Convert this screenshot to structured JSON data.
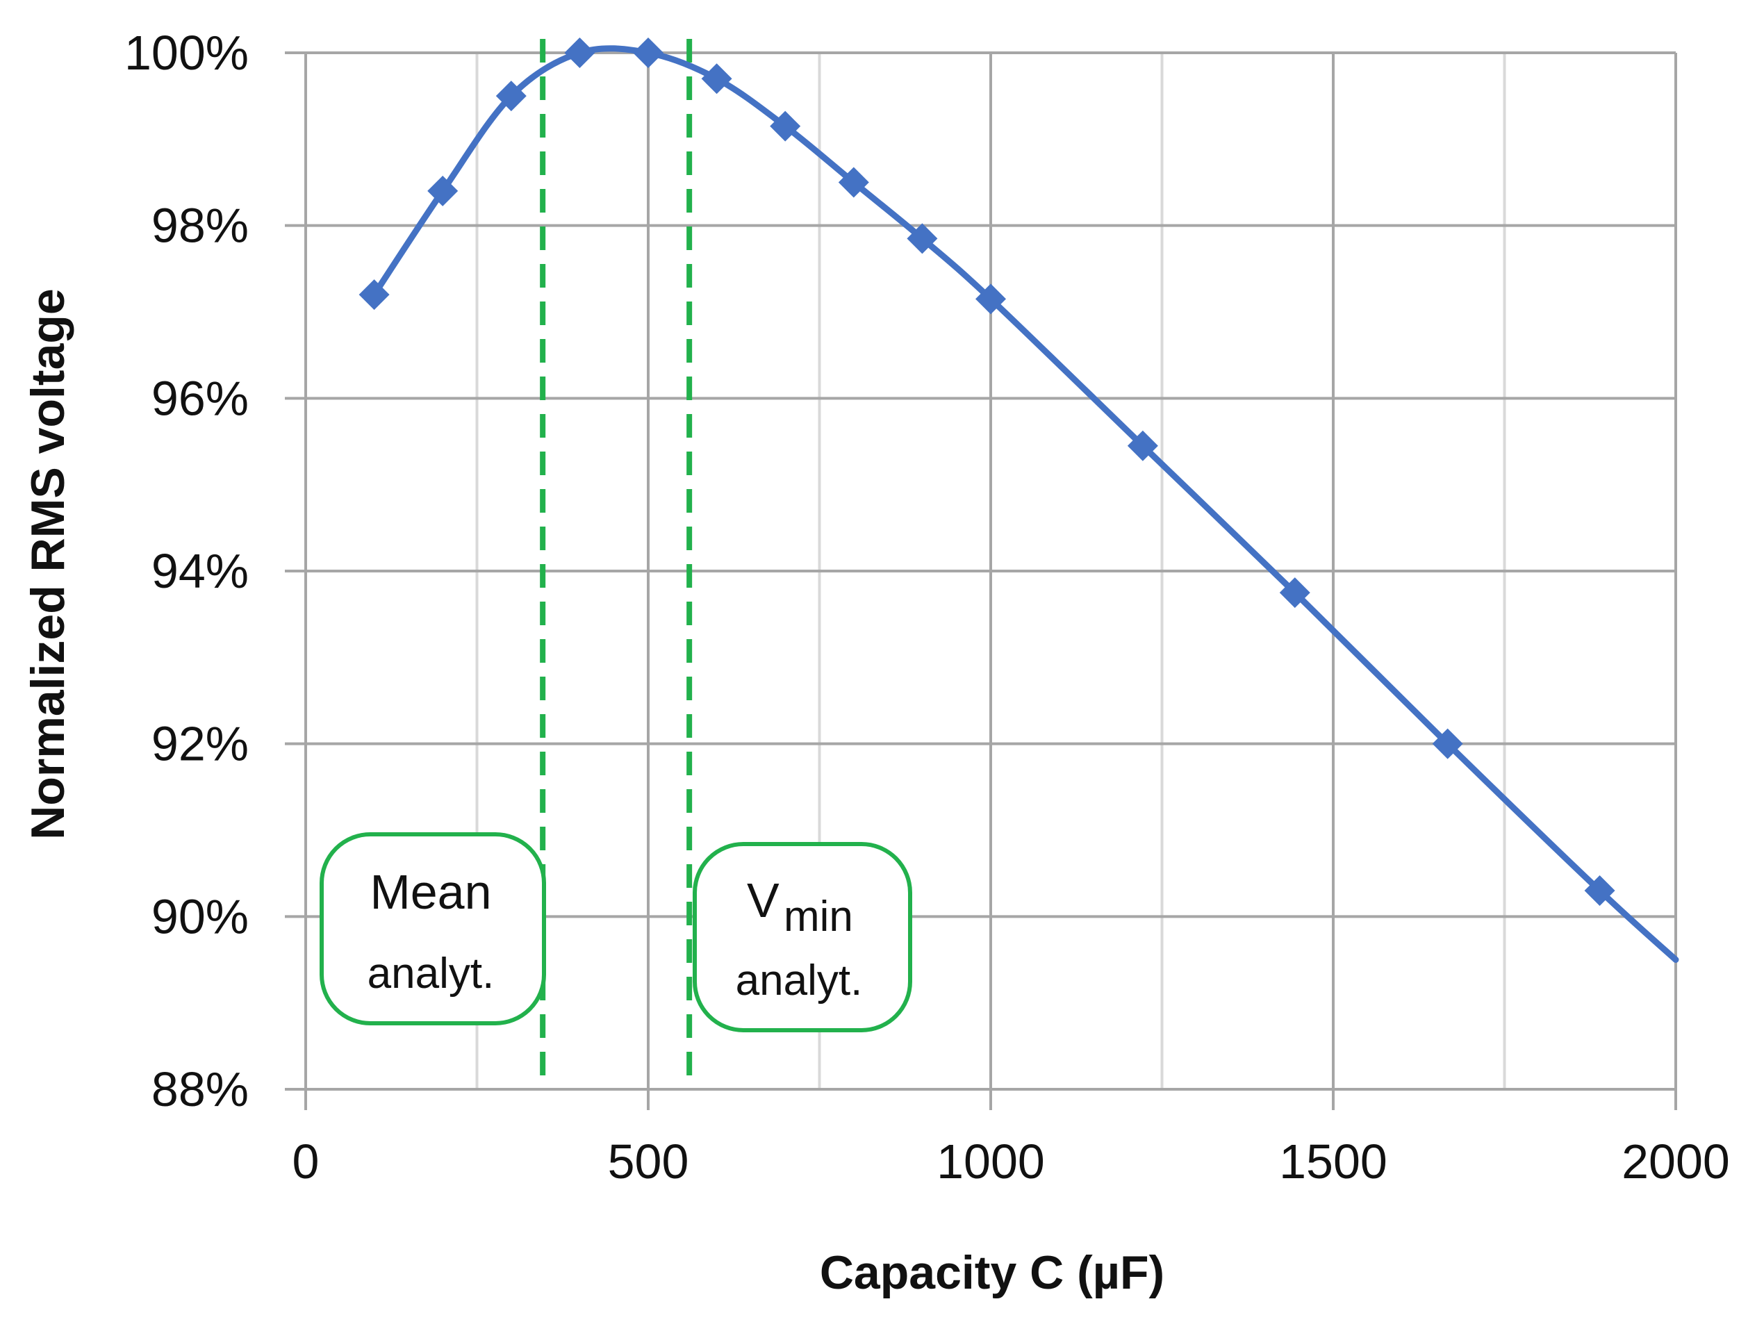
{
  "chart_data": {
    "type": "line",
    "title": "",
    "xlabel": "Capacity C (µF)",
    "ylabel": "Normalized RMS voltage",
    "xlim": [
      0,
      2000
    ],
    "ylim": [
      88,
      100
    ],
    "x_ticks": [
      0,
      500,
      1000,
      1500,
      2000
    ],
    "x_tick_labels": [
      "0",
      "500",
      "1000",
      "1500",
      "2000"
    ],
    "y_ticks": [
      88,
      90,
      92,
      94,
      96,
      98,
      100
    ],
    "y_tick_labels": [
      "88%",
      "90%",
      "92%",
      "94%",
      "96%",
      "98%",
      "100%"
    ],
    "grid": true,
    "series": [
      {
        "name": "Normalized RMS voltage",
        "color": "#4472C4",
        "marker": "diamond",
        "x": [
          100,
          200,
          300,
          400,
          500,
          600,
          700,
          800,
          900,
          1000,
          1222,
          1444,
          1667,
          1889
        ],
        "y": [
          97.2,
          98.4,
          99.5,
          100.0,
          100.0,
          99.7,
          99.15,
          98.5,
          97.85,
          97.15,
          95.45,
          93.75,
          92.0,
          90.3
        ]
      }
    ],
    "curve_end": {
      "x": 2000,
      "y": 89.5
    },
    "reference_lines": [
      {
        "x": 346,
        "color": "#22B14C",
        "style": "dashed",
        "label_main": "Mean",
        "label_sub": "analyt."
      },
      {
        "x": 560,
        "color": "#22B14C",
        "style": "dashed",
        "label_main": "V",
        "label_subscript": "min",
        "label_sub": "analyt."
      }
    ]
  }
}
